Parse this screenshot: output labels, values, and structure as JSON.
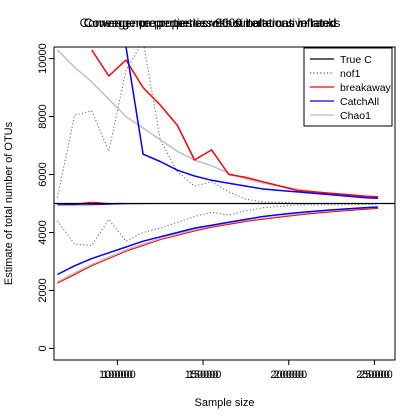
{
  "chart_data": {
    "type": "line",
    "title_layers": [
      "Convergence properties without alternative ranks",
      "Coverage properties across simulations inflated",
      "Convergence properties 9000 iterations inflated"
    ],
    "xlabel": "Sample size",
    "ylabel": "Estimate of total number of OTUs",
    "xlim": [
      63000,
      262000
    ],
    "ylim": [
      -400,
      10400
    ],
    "x_ticks": [
      {
        "value": 100000,
        "labels": [
          "100000",
          "10000"
        ]
      },
      {
        "value": 150000,
        "labels": [
          "150000",
          "15000"
        ]
      },
      {
        "value": 200000,
        "labels": [
          "200000",
          "20000"
        ]
      },
      {
        "value": 250000,
        "labels": [
          "250000",
          "25000"
        ]
      }
    ],
    "y_ticks": [
      0,
      2000,
      4000,
      6000,
      8000,
      10000
    ],
    "legend_position": "top-right",
    "legend": [
      {
        "label": "True C",
        "color": "#000000",
        "dash": "solid"
      },
      {
        "label": "nof1",
        "color": "#555555",
        "dash": "dotted"
      },
      {
        "label": "breakaway",
        "color": "#ff0000",
        "dash": "solid"
      },
      {
        "label": "CatchAll",
        "color": "#0000ff",
        "dash": "solid"
      },
      {
        "label": "Chao1",
        "color": "#bbbbbb",
        "dash": "solid"
      }
    ],
    "true_c": 5000,
    "series": [
      {
        "key": "nof1_upper",
        "color": "#666666",
        "dash": "dotted",
        "width": 1,
        "x": [
          65000,
          75000,
          85000,
          95000,
          105000,
          115000,
          125000,
          135000,
          145000,
          155000,
          165000,
          175000,
          185000,
          195000,
          205000,
          215000,
          225000,
          235000,
          245000,
          252000
        ],
        "y": [
          5200,
          8050,
          8200,
          6800,
          9600,
          10600,
          7200,
          6100,
          5600,
          5750,
          5400,
          5150,
          5050,
          5050,
          5000,
          5000,
          5000,
          5000,
          5000,
          5000
        ]
      },
      {
        "key": "nof1_lower",
        "color": "#666666",
        "dash": "dotted",
        "width": 1,
        "x": [
          65000,
          75000,
          85000,
          95000,
          105000,
          115000,
          125000,
          135000,
          145000,
          155000,
          165000,
          175000,
          185000,
          195000,
          205000,
          215000,
          225000,
          235000,
          245000,
          252000
        ],
        "y": [
          4400,
          3600,
          3550,
          4450,
          3700,
          4000,
          4150,
          4350,
          4550,
          4700,
          4600,
          4750,
          4850,
          4900,
          4950,
          4950,
          4950,
          4960,
          4970,
          4980
        ]
      },
      {
        "key": "chao1_upper",
        "color": "#c0c0c0",
        "dash": "solid",
        "width": 1.5,
        "x": [
          65000,
          75000,
          85000,
          95000,
          105000,
          115000,
          125000,
          135000,
          145000,
          155000,
          165000,
          175000,
          185000,
          195000,
          205000,
          215000,
          225000,
          235000,
          245000,
          252000
        ],
        "y": [
          10300,
          9700,
          9200,
          8600,
          8000,
          7600,
          7200,
          6800,
          6500,
          6300,
          6050,
          5850,
          5700,
          5600,
          5500,
          5400,
          5350,
          5300,
          5250,
          5200
        ]
      },
      {
        "key": "chao1_lower",
        "color": "#c0c0c0",
        "dash": "solid",
        "width": 1.5,
        "x": [
          65000,
          75000,
          85000,
          95000,
          105000,
          115000,
          125000,
          135000,
          145000,
          155000,
          165000,
          175000,
          185000,
          195000,
          205000,
          215000,
          225000,
          235000,
          245000,
          252000
        ],
        "y": [
          2300,
          2600,
          2900,
          3150,
          3400,
          3600,
          3800,
          3950,
          4100,
          4200,
          4300,
          4400,
          4480,
          4550,
          4620,
          4680,
          4730,
          4780,
          4820,
          4850
        ]
      },
      {
        "key": "breakaway_upper",
        "color": "#ff0000",
        "dash": "solid",
        "width": 1.5,
        "x": [
          85000,
          95000,
          105000,
          115000,
          125000,
          135000,
          145000,
          155000,
          165000,
          175000,
          185000,
          195000,
          205000,
          215000,
          225000,
          235000,
          245000,
          252000
        ],
        "y": [
          10300,
          9400,
          9950,
          9000,
          8400,
          7700,
          6500,
          6850,
          6000,
          5900,
          5750,
          5600,
          5450,
          5400,
          5350,
          5300,
          5250,
          5230
        ]
      },
      {
        "key": "breakaway_lower",
        "color": "#ff0000",
        "dash": "solid",
        "width": 1,
        "x": [
          65000,
          75000,
          85000,
          95000,
          105000,
          115000,
          125000,
          135000,
          145000,
          155000,
          165000,
          175000,
          185000,
          195000,
          205000,
          215000,
          225000,
          235000,
          245000,
          252000
        ],
        "y": [
          2250,
          2550,
          2850,
          3100,
          3350,
          3550,
          3750,
          3900,
          4050,
          4180,
          4280,
          4380,
          4460,
          4530,
          4600,
          4660,
          4710,
          4760,
          4800,
          4830
        ]
      },
      {
        "key": "breakaway_mid",
        "color": "#ff0000",
        "dash": "solid",
        "width": 1,
        "x": [
          65000,
          75000,
          85000,
          95000,
          105000,
          115000
        ],
        "y": [
          4950,
          4980,
          5050,
          5000,
          5000,
          5000
        ]
      },
      {
        "key": "catchall_upper",
        "color": "#0000ff",
        "dash": "solid",
        "width": 1.5,
        "x": [
          105000,
          115000,
          125000,
          135000,
          145000,
          155000,
          165000,
          175000,
          185000,
          195000,
          205000,
          215000,
          225000,
          235000,
          245000,
          252000
        ],
        "y": [
          10400,
          6700,
          6450,
          6150,
          5950,
          5800,
          5700,
          5600,
          5500,
          5450,
          5400,
          5350,
          5300,
          5250,
          5200,
          5180
        ]
      },
      {
        "key": "catchall_lower",
        "color": "#0000ff",
        "dash": "solid",
        "width": 1.5,
        "x": [
          65000,
          75000,
          85000,
          95000,
          105000,
          115000,
          125000,
          135000,
          145000,
          155000,
          165000,
          175000,
          185000,
          195000,
          205000,
          215000,
          225000,
          235000,
          245000,
          252000
        ],
        "y": [
          2550,
          2850,
          3100,
          3300,
          3500,
          3700,
          3850,
          4000,
          4150,
          4250,
          4350,
          4450,
          4550,
          4620,
          4680,
          4730,
          4780,
          4820,
          4860,
          4880
        ]
      },
      {
        "key": "catchall_mid",
        "color": "#0000ff",
        "dash": "solid",
        "width": 1,
        "x": [
          65000,
          85000,
          105000,
          125000,
          145000,
          165000,
          185000,
          205000,
          225000,
          252000
        ],
        "y": [
          4950,
          4960,
          4990,
          5000,
          5000,
          5000,
          5000,
          5000,
          5000,
          5000
        ]
      }
    ]
  }
}
